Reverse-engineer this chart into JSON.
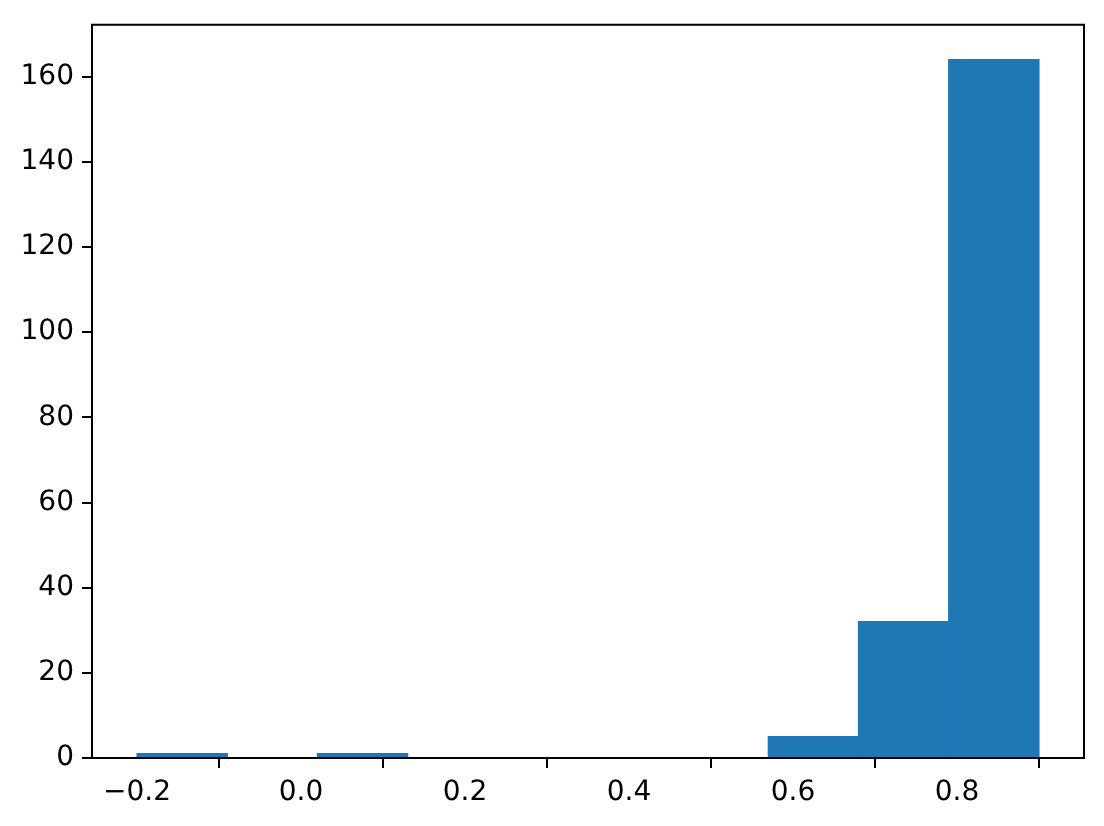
{
  "chart_data": {
    "type": "histogram",
    "bins": [
      -0.2,
      -0.09,
      0.02,
      0.13,
      0.24,
      0.35,
      0.46,
      0.57,
      0.68,
      0.79,
      0.9
    ],
    "values": [
      1,
      0,
      1,
      0,
      0,
      0,
      0,
      5,
      32,
      164
    ],
    "color": "#1f77b4",
    "xlim": [
      -0.255,
      0.955
    ],
    "ylim": [
      0,
      172.2
    ],
    "xticks": [
      {
        "value": -0.2,
        "label": "−0.2"
      },
      {
        "value": 0,
        "label": "0.0"
      },
      0.2,
      0.4,
      0.6,
      0.8
    ],
    "yticks": [
      0,
      20,
      40,
      60,
      80,
      100,
      120,
      140,
      160
    ],
    "grid": false,
    "legend": false
  }
}
